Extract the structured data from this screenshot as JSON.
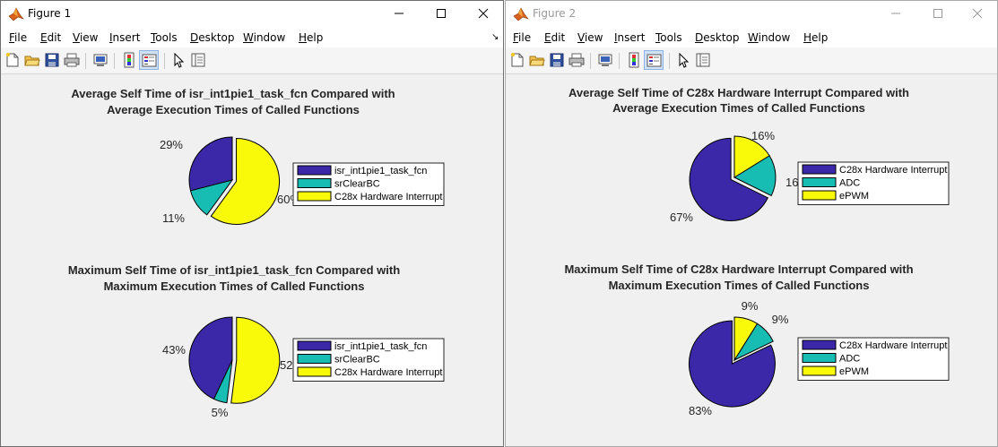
{
  "colors": {
    "purple": "#3a28a8",
    "teal": "#17bcb2",
    "yellow": "#f9f90a"
  },
  "windows": [
    {
      "title": "Figure 1",
      "active": true,
      "menu": [
        "File",
        "Edit",
        "View",
        "Insert",
        "Tools",
        "Desktop",
        "Window",
        "Help"
      ],
      "charts": [
        {
          "title_line1": "Average Self Time of isr_int1pie1_task_fcn Compared with",
          "title_line2": "Average Execution Times of Called Functions",
          "labels": [
            "29%",
            "11%",
            "60%"
          ],
          "legend": [
            "isr_int1pie1_task_fcn",
            "srClearBC",
            "C28x Hardware Interrupt"
          ]
        },
        {
          "title_line1": "Maximum Self Time of isr_int1pie1_task_fcn Compared with",
          "title_line2": "Maximum Execution Times of Called Functions",
          "labels": [
            "43%",
            "5%",
            "52%"
          ],
          "legend": [
            "isr_int1pie1_task_fcn",
            "srClearBC",
            "C28x Hardware Interrupt"
          ]
        }
      ]
    },
    {
      "title": "Figure 2",
      "active": false,
      "menu": [
        "File",
        "Edit",
        "View",
        "Insert",
        "Tools",
        "Desktop",
        "Window",
        "Help"
      ],
      "charts": [
        {
          "title_line1": "Average Self Time of C28x Hardware Interrupt Compared with",
          "title_line2": "Average Execution Times of Called Functions",
          "labels": [
            "67%",
            "16%",
            "16%"
          ],
          "legend": [
            "C28x Hardware Interrupt",
            "ADC",
            "ePWM"
          ]
        },
        {
          "title_line1": "Maximum Self Time of C28x Hardware Interrupt Compared with",
          "title_line2": "Maximum Execution Times of Called Functions",
          "labels": [
            "83%",
            "9%",
            "9%"
          ],
          "legend": [
            "C28x Hardware Interrupt",
            "ADC",
            "ePWM"
          ]
        }
      ]
    }
  ],
  "chart_data": [
    {
      "type": "pie",
      "title": "Average Self Time of isr_int1pie1_task_fcn Compared with Average Execution Times of Called Functions",
      "categories": [
        "isr_int1pie1_task_fcn",
        "srClearBC",
        "C28x Hardware Interrupt"
      ],
      "values": [
        29,
        11,
        60
      ],
      "exploded": [
        false,
        false,
        true
      ],
      "legend_position": "right"
    },
    {
      "type": "pie",
      "title": "Maximum Self Time of isr_int1pie1_task_fcn Compared with Maximum Execution Times of Called Functions",
      "categories": [
        "isr_int1pie1_task_fcn",
        "srClearBC",
        "C28x Hardware Interrupt"
      ],
      "values": [
        43,
        5,
        52
      ],
      "exploded": [
        false,
        false,
        true
      ],
      "legend_position": "right"
    },
    {
      "type": "pie",
      "title": "Average Self Time of C28x Hardware Interrupt Compared with Average Execution Times of Called Functions",
      "categories": [
        "C28x Hardware Interrupt",
        "ADC",
        "ePWM"
      ],
      "values": [
        67,
        16,
        16
      ],
      "exploded": [
        true,
        false,
        false
      ],
      "legend_position": "right"
    },
    {
      "type": "pie",
      "title": "Maximum Self Time of C28x Hardware Interrupt Compared with Maximum Execution Times of Called Functions",
      "categories": [
        "C28x Hardware Interrupt",
        "ADC",
        "ePWM"
      ],
      "values": [
        83,
        9,
        9
      ],
      "exploded": [
        true,
        false,
        false
      ],
      "legend_position": "right"
    }
  ]
}
